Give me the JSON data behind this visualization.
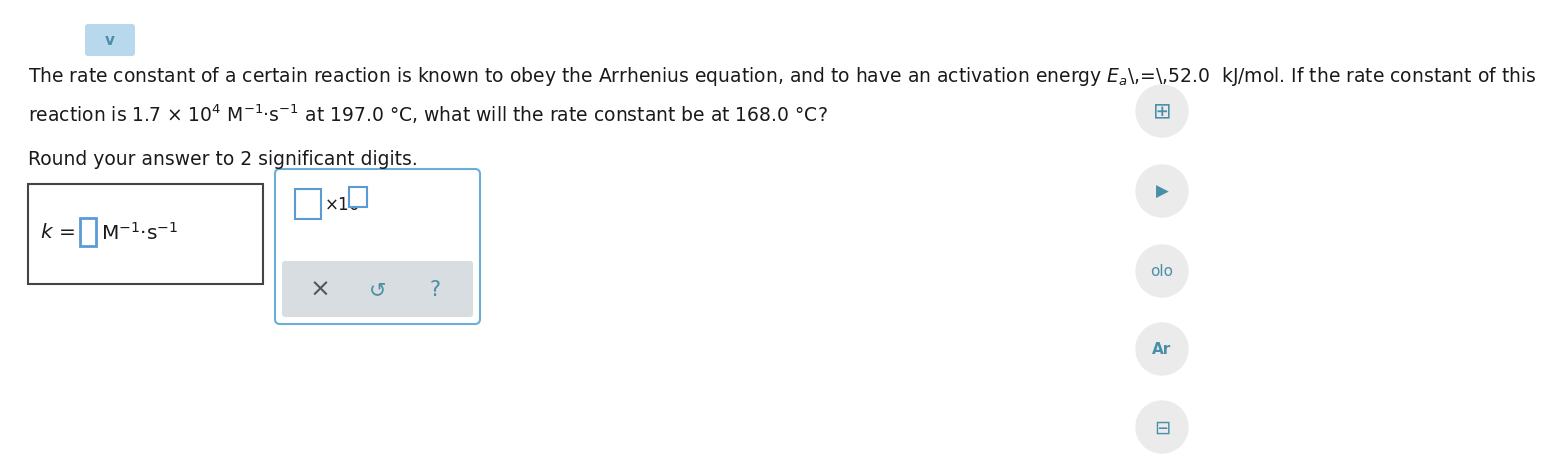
{
  "bg": "#ffffff",
  "tc": "#1a1a1a",
  "chevron_bg": "#b8d8ee",
  "chevron_color": "#4a8fa8",
  "line1": "The rate constant of a certain reaction is known to obey the Arrhenius equation, and to have an activation energy $E_a$ = 52.0  kJ/mol. If the rate constant of this",
  "line2": "reaction is 1.7 × 10$^4$ M$^{-1}$·s$^{-1}$ at 197.0 °C, what will the rate constant be at 168.0 °C?",
  "line3": "Round your answer to 2 significant digits.",
  "box1_edge": "#444444",
  "box2_edge": "#6aaed6",
  "input_edge": "#5b9bd5",
  "btn_bg": "#d8dde2",
  "icon_bg": "#ebebeb",
  "icon_color": "#4a8fa8",
  "fs_main": 13.5,
  "fs_icon": 12
}
